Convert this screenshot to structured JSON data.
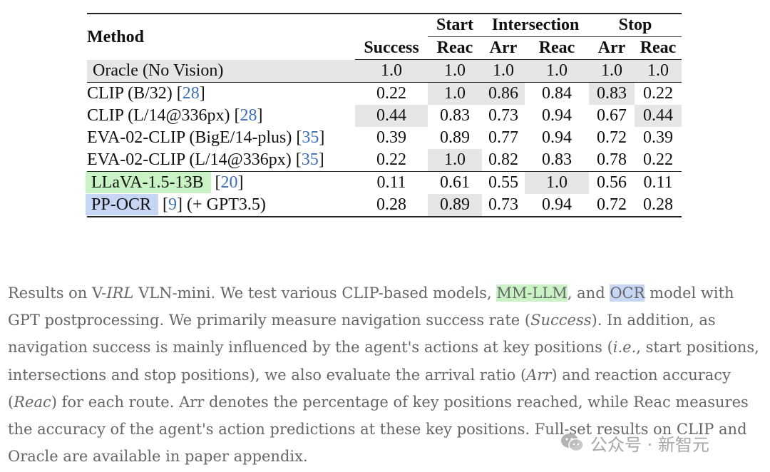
{
  "table": {
    "header": {
      "method": "Method",
      "success": "Success",
      "groups": [
        "Start",
        "Intersection",
        "Stop"
      ],
      "subcols": [
        "Reac",
        "Arr",
        "Reac",
        "Arr",
        "Reac"
      ]
    },
    "rows": [
      {
        "name": "Oracle (No Vision)",
        "ref": "",
        "suffix": "",
        "values": [
          "1.0",
          "1.0",
          "1.0",
          "1.0",
          "1.0",
          "1.0"
        ]
      },
      {
        "name": "CLIP (B/32)",
        "ref": "28",
        "suffix": "",
        "values": [
          "0.22",
          "1.0",
          "0.86",
          "0.84",
          "0.83",
          "0.22"
        ]
      },
      {
        "name": "CLIP (L/14@336px)",
        "ref": "28",
        "suffix": "",
        "values": [
          "0.44",
          "0.83",
          "0.73",
          "0.94",
          "0.67",
          "0.44"
        ]
      },
      {
        "name": "EVA-02-CLIP (BigE/14-plus)",
        "ref": "35",
        "suffix": "",
        "values": [
          "0.39",
          "0.89",
          "0.77",
          "0.94",
          "0.72",
          "0.39"
        ]
      },
      {
        "name": "EVA-02-CLIP (L/14@336px)",
        "ref": "35",
        "suffix": "",
        "values": [
          "0.22",
          "1.0",
          "0.82",
          "0.83",
          "0.78",
          "0.22"
        ]
      },
      {
        "name": "LLaVA-1.5-13B",
        "ref": "20",
        "suffix": "",
        "values": [
          "0.11",
          "0.61",
          "0.55",
          "1.0",
          "0.56",
          "0.11"
        ]
      },
      {
        "name": "PP-OCR",
        "ref": "9",
        "suffix": "(+ GPT3.5)",
        "values": [
          "0.28",
          "0.89",
          "0.73",
          "0.94",
          "0.72",
          "0.28"
        ]
      }
    ]
  },
  "caption": {
    "p1": "Results on V-",
    "irl": "IRL",
    "p2": " VLN-mini. We test various CLIP-based models, ",
    "mmllm": "MM-LLM",
    "p3": ", and ",
    "ocr": "OCR",
    "p4": " model with GPT postprocessing. We primarily measure navigation success rate (",
    "success": "Success",
    "p5": "). In addition, as navigation success is mainly influenced by the agent's actions at key positions (",
    "ie": "i.e.",
    "p6": ", start positions, intersections and stop positions), we also evaluate the arrival ratio (",
    "arr": "Arr",
    "p7": ") and reaction accuracy (",
    "reac": "Reac",
    "p8": ") for each route. Arr denotes the percentage of key positions reached, while Reac measures the accuracy of the agent's action predictions at these key positions. Full-set results on CLIP and Oracle are available in paper appendix."
  },
  "watermark": {
    "text": "公众号 · 新智元",
    "icon": "wechat-icon"
  },
  "colors": {
    "highlight_gray": "#e6e6e6",
    "tag_green": "#c9f3c4",
    "tag_blue": "#c7d6f5",
    "reference_blue": "#3b6fb6"
  }
}
